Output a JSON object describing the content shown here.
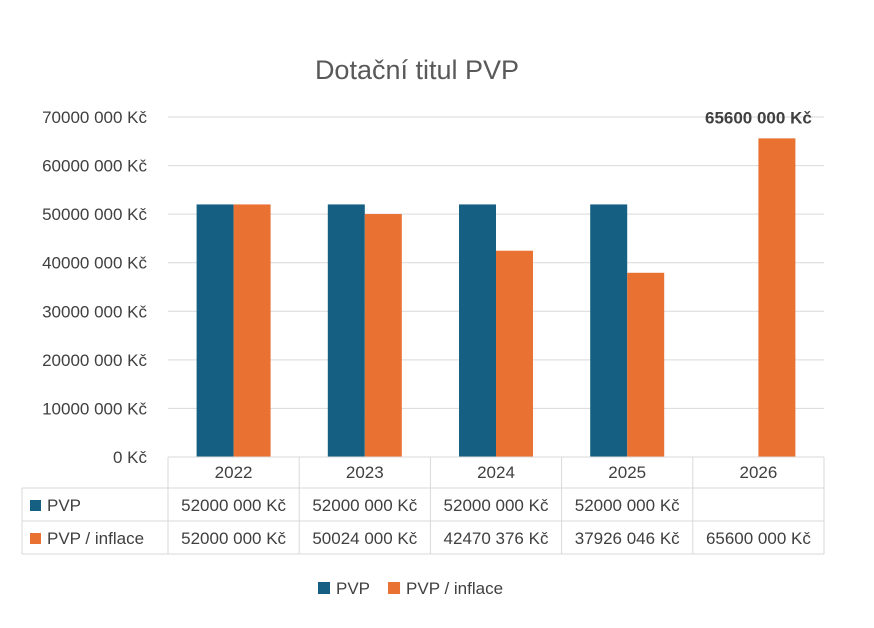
{
  "chart_data": {
    "type": "bar",
    "title": "Dotační titul PVP",
    "categories": [
      "2022",
      "2023",
      "2024",
      "2025",
      "2026"
    ],
    "series": [
      {
        "name": "PVP",
        "color": "#156082",
        "values": [
          52000000,
          52000000,
          52000000,
          52000000,
          null
        ],
        "labels": [
          "52000 000 Kč",
          "52000 000 Kč",
          "52000 000 Kč",
          "52000 000 Kč",
          ""
        ]
      },
      {
        "name": "PVP / inflace",
        "color": "#E97132",
        "values": [
          52000000,
          50024000,
          42470376,
          37926046,
          65600000
        ],
        "labels": [
          "52000 000 Kč",
          "50024 000 Kč",
          "42470 376 Kč",
          "37926 046 Kč",
          "65600 000 Kč"
        ]
      }
    ],
    "ylim": [
      0,
      70000000
    ],
    "yticks": [
      0,
      10000000,
      20000000,
      30000000,
      40000000,
      50000000,
      60000000,
      70000000
    ],
    "ytick_labels": [
      "0 Kč",
      "10000 000 Kč",
      "20000 000 Kč",
      "30000 000 Kč",
      "40000 000 Kč",
      "50000 000 Kč",
      "60000 000 Kč",
      "70000 000 Kč"
    ],
    "annotation": {
      "series": 1,
      "category": 4,
      "text": "65600 000 Kč"
    },
    "grid": true,
    "data_table": true,
    "legend": "bottom"
  }
}
